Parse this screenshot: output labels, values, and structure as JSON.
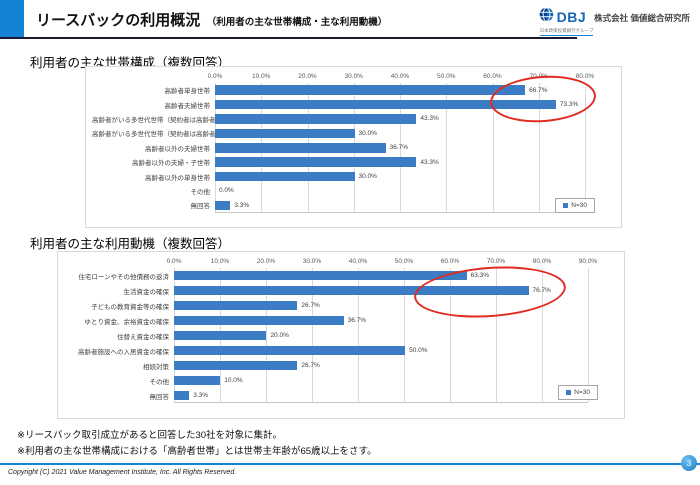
{
  "header": {
    "title_main": "リースバックの利用概況",
    "title_sub": "（利用者の主な世帯構成・主な利用動機）",
    "logo": {
      "abbr": "DBJ",
      "company": "株式会社 価値総合研究所",
      "group": "日本政策投資銀行グループ"
    }
  },
  "sections": [
    {
      "title": "利用者の主な世帯構成（複数回答）"
    },
    {
      "title": "利用者の主な利用動機（複数回答）"
    }
  ],
  "chart_data": [
    {
      "type": "bar",
      "orientation": "horizontal",
      "title": "利用者の主な世帯構成（複数回答）",
      "categories": [
        "高齢者単身世帯",
        "高齢者夫婦世帯",
        "高齢者がいる多世代世帯（契約者は高齢者）",
        "高齢者がいる多世代世帯（契約者は高齢者以外）",
        "高齢者以外の夫婦世帯",
        "高齢者以外の夫婦・子世帯",
        "高齢者以外の単身世帯",
        "その他",
        "無回答"
      ],
      "values": [
        66.7,
        73.3,
        43.3,
        30.0,
        36.7,
        43.3,
        30.0,
        0.0,
        3.3
      ],
      "value_labels": [
        "66.7%",
        "73.3%",
        "43.3%",
        "30.0%",
        "36.7%",
        "43.3%",
        "30.0%",
        "0.0%",
        "3.3%"
      ],
      "xlim": [
        0,
        80
      ],
      "ticks": [
        "0.0%",
        "10.0%",
        "20.0%",
        "30.0%",
        "40.0%",
        "50.0%",
        "60.0%",
        "70.0%",
        "80.0%"
      ],
      "grid": "vertical",
      "legend": "N=30",
      "legend_position": "bottom-right",
      "annotation": "red ellipse highlighting 66.7% and 73.3%"
    },
    {
      "type": "bar",
      "orientation": "horizontal",
      "title": "利用者の主な利用動機（複数回答）",
      "categories": [
        "住宅ローンやその他債務の返済",
        "生活資金の確保",
        "子どもの教育資金等の確保",
        "ゆとり資金、余裕資金の確保",
        "住替え資金の確保",
        "高齢者施設への入居資金の確保",
        "相続対策",
        "その他",
        "無回答"
      ],
      "values": [
        63.3,
        76.7,
        26.7,
        36.7,
        20.0,
        50.0,
        26.7,
        10.0,
        3.3
      ],
      "value_labels": [
        "63.3%",
        "76.7%",
        "26.7%",
        "36.7%",
        "20.0%",
        "50.0%",
        "26.7%",
        "10.0%",
        "3.3%"
      ],
      "xlim": [
        0,
        90
      ],
      "ticks": [
        "0.0%",
        "10.0%",
        "20.0%",
        "30.0%",
        "40.0%",
        "50.0%",
        "60.0%",
        "70.0%",
        "80.0%",
        "90.0%"
      ],
      "grid": "vertical",
      "legend": "N=30",
      "legend_position": "bottom-right",
      "annotation": "red ellipse highlighting 63.3% and 76.7%"
    }
  ],
  "footnotes": [
    "※リースバック取引成立があると回答した30社を対象に集計。",
    "※利用者の主な世帯構成における「高齢者世帯」とは世帯主年齢が65歳以上をさす。"
  ],
  "footer": {
    "copyright": "Copyright (C) 2021 Value Management Institute, Inc. All Rights Reserved.",
    "page": "3"
  },
  "colors": {
    "bar": "#3B7CC4",
    "accent": "#1583D5",
    "header_rule": "#1a1a33",
    "annotation_red": "#E02B20"
  }
}
